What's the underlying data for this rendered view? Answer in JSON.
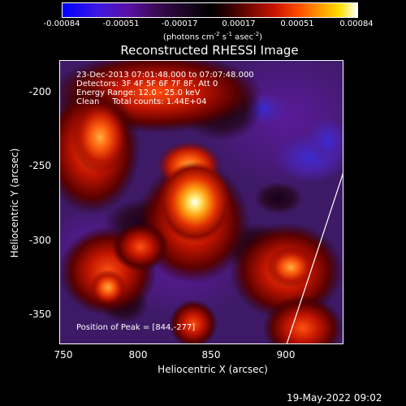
{
  "colorbar": {
    "ticks": [
      "-0.00084",
      "-0.00051",
      "-0.00017",
      "0.00017",
      "0.00051",
      "0.00084"
    ],
    "unit_label": "(photons cm",
    "unit_exp1": "-2",
    "unit_mid": " s",
    "unit_exp2": "-1",
    "unit_mid2": " asec",
    "unit_exp3": "-2",
    "unit_end": ")"
  },
  "title": "Reconstructed RHESSI Image",
  "info": {
    "line1": "23-Dec-2013 07:01:48.000 to 07:07:48.000",
    "line2": "Detectors: 3F 4F 5F 6F 7F 8F, Att 0",
    "line3": "Energy Range: 12.0 - 25.0 keV",
    "line4": "Clean     Total counts: 1.44E+04",
    "peak": "Position of Peak = [844,-277]"
  },
  "axes": {
    "x_title": "Heliocentric X (arcsec)",
    "y_title": "Heliocentric Y (arcsec)",
    "x_ticks": [
      "750",
      "800",
      "850",
      "900"
    ],
    "y_ticks": [
      "-200",
      "-250",
      "-300",
      "-350"
    ]
  },
  "footer": "19-May-2022 09:02"
}
